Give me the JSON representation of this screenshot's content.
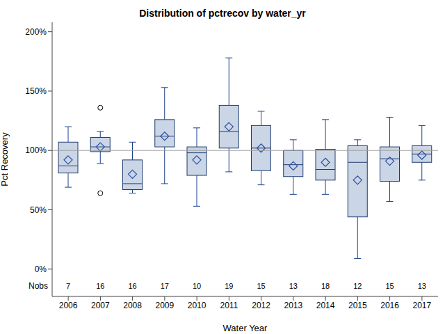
{
  "chart_data": {
    "type": "box",
    "title": "Distribution of pctrecov by water_yr",
    "x_label": "Water Year",
    "y_label": "Pct Recovery",
    "categories": [
      "2006",
      "2007",
      "2008",
      "2009",
      "2010",
      "2011",
      "2012",
      "2013",
      "2014",
      "2015",
      "2016",
      "2017"
    ],
    "min": [
      69,
      89,
      64,
      72,
      53,
      82,
      71,
      63,
      63,
      9,
      57,
      75
    ],
    "q1": [
      81,
      99,
      67,
      103,
      79,
      102,
      83,
      78,
      75,
      44,
      74,
      90
    ],
    "median": [
      87,
      103,
      72,
      112,
      98,
      116,
      102,
      88,
      84,
      90,
      93,
      97
    ],
    "q3": [
      107,
      111,
      92,
      126,
      103,
      138,
      121,
      100,
      101,
      104,
      103,
      104
    ],
    "max": [
      120,
      116,
      107,
      153,
      119,
      178,
      133,
      109,
      126,
      109,
      128,
      121
    ],
    "mean": [
      92,
      103,
      80,
      112,
      92,
      120,
      102,
      87,
      90,
      75,
      91,
      96
    ],
    "outliers": [
      [],
      [
        136,
        64
      ],
      [],
      [],
      [],
      [],
      [],
      [],
      [],
      [],
      [],
      []
    ],
    "nobs_label": "Nobs",
    "nobs": [
      7,
      16,
      16,
      17,
      10,
      19,
      15,
      13,
      18,
      12,
      15,
      13
    ],
    "reference_line": 100,
    "color": "#cad5e5",
    "ylim": [
      -23,
      208
    ],
    "yticks": [
      {
        "value": 0,
        "label": "0%"
      },
      {
        "value": 50,
        "label": "50%"
      },
      {
        "value": 100,
        "label": "100%"
      },
      {
        "value": 150,
        "label": "150%"
      },
      {
        "value": 200,
        "label": "200%"
      }
    ]
  }
}
